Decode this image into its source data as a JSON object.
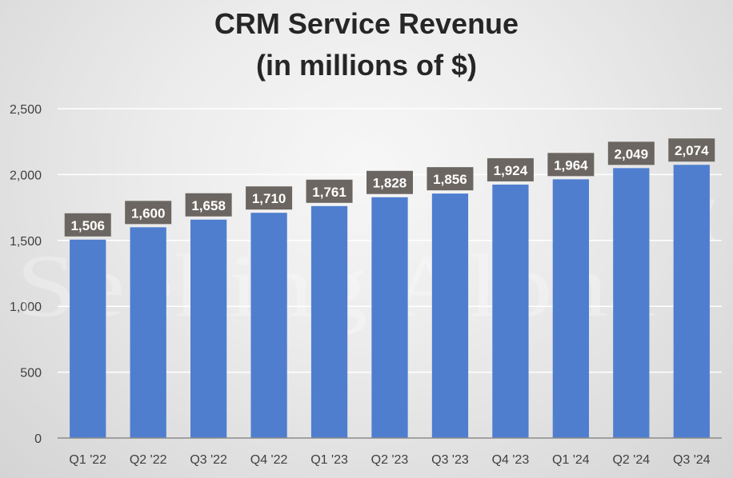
{
  "chart_data": {
    "type": "bar",
    "title": [
      "CRM Service Revenue",
      "(in millions of $)"
    ],
    "categories": [
      "Q1 '22",
      "Q2 '22",
      "Q3 '22",
      "Q4 '22",
      "Q1 '23",
      "Q2 '23",
      "Q3 '23",
      "Q4 '23",
      "Q1 '24",
      "Q2 '24",
      "Q3 '24"
    ],
    "values": [
      1506,
      1600,
      1658,
      1710,
      1761,
      1828,
      1856,
      1924,
      1964,
      2049,
      2074
    ],
    "data_labels": [
      "1,506",
      "1,600",
      "1,658",
      "1,710",
      "1,761",
      "1,828",
      "1,856",
      "1,924",
      "1,964",
      "2,049",
      "2,074"
    ],
    "ylim": [
      0,
      2500
    ],
    "y_ticks": [
      0,
      500,
      1000,
      1500,
      2000,
      2500
    ],
    "y_tick_labels": [
      "0",
      "500",
      "1,000",
      "1,500",
      "2,000",
      "2,500"
    ],
    "xlabel": "",
    "ylabel": "",
    "grid": true,
    "legend": "none",
    "bar_color": "#4f7ecf",
    "label_bg_color": "#6b6661"
  },
  "watermark": "Seeking Alpha",
  "watermark_symbol": "α"
}
